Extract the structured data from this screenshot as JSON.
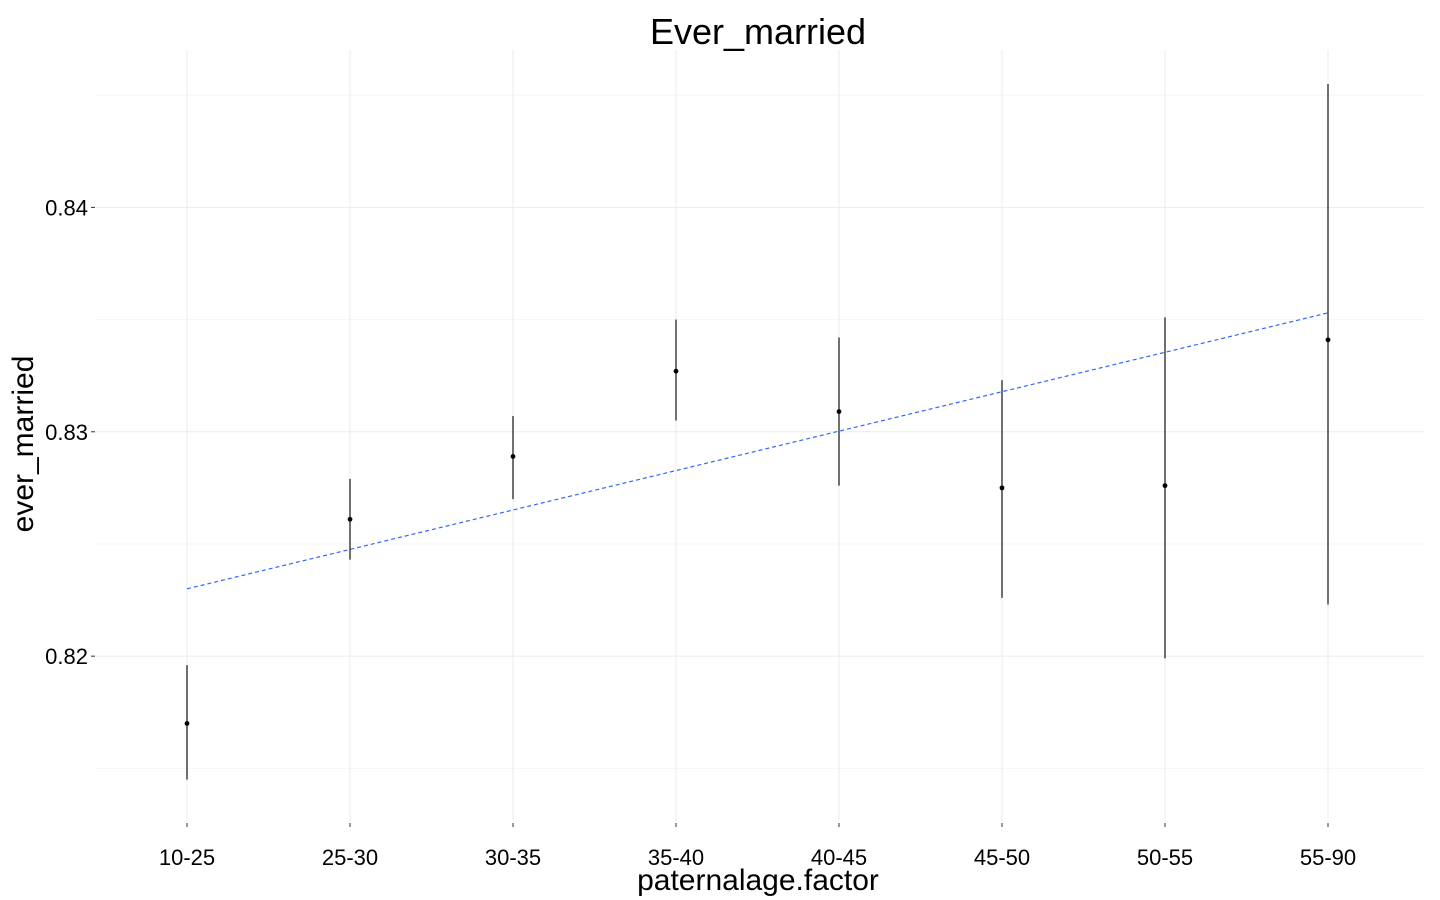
{
  "chart_data": {
    "type": "scatter",
    "title": "Ever_married",
    "xlabel": "paternalage.factor",
    "ylabel": "ever_married",
    "categories": [
      "10-25",
      "25-30",
      "30-35",
      "35-40",
      "40-45",
      "45-50",
      "50-55",
      "55-90"
    ],
    "y_ticks": [
      {
        "value": 0.82,
        "label": "0.82"
      },
      {
        "value": 0.83,
        "label": "0.83"
      },
      {
        "value": 0.84,
        "label": "0.84"
      }
    ],
    "ylim": [
      0.8135,
      0.8455
    ],
    "series": [
      {
        "values": [
          0.817,
          0.8261,
          0.8289,
          0.8327,
          0.8309,
          0.8275,
          0.8276,
          0.8341
        ],
        "lower": [
          0.8145,
          0.8243,
          0.827,
          0.8305,
          0.8276,
          0.8226,
          0.8199,
          0.8223
        ],
        "upper": [
          0.8196,
          0.8279,
          0.8307,
          0.835,
          0.8342,
          0.8323,
          0.8351,
          0.8455
        ]
      }
    ],
    "trend_line": {
      "style": "dashed",
      "color": "#3366ff",
      "start": 0.823,
      "end": 0.8353
    },
    "grid": true,
    "legend": "none"
  }
}
